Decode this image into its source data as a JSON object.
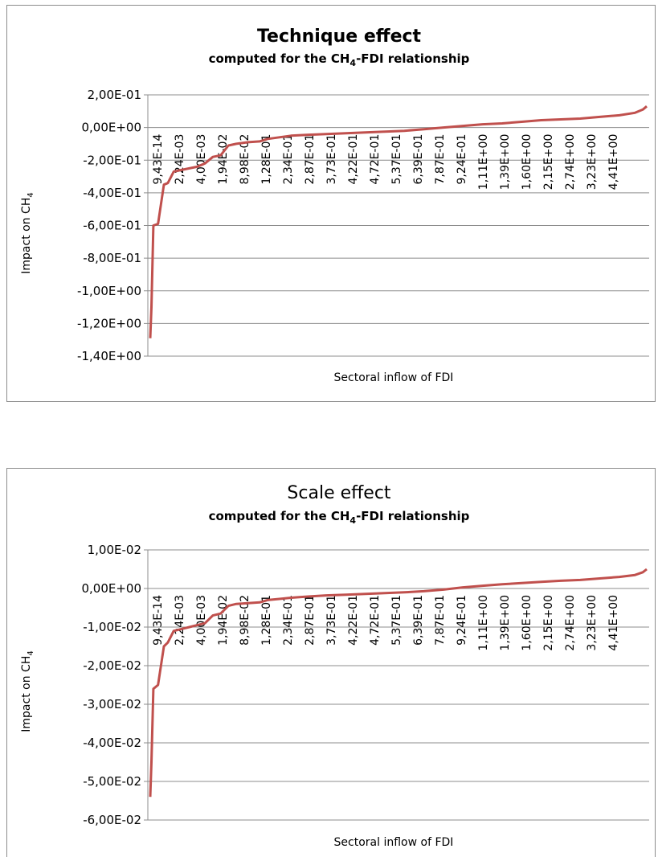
{
  "chart_data": [
    {
      "type": "line",
      "title": "Technique effect",
      "subtitle": "computed for the CH4-FDI relationship",
      "xlabel": "Sectoral inflow of FDI",
      "ylabel": "Impact on CH4",
      "ylim": [
        -1.4,
        0.2
      ],
      "yticks": [
        0.2,
        0.0,
        -0.2,
        -0.4,
        -0.6,
        -0.8,
        -1.0,
        -1.2,
        -1.4
      ],
      "ytick_labels": [
        "2,00E-01",
        "0,00E+00",
        "-2,00E-01",
        "-4,00E-01",
        "-6,00E-01",
        "-8,00E-01",
        "-1,00E+00",
        "-1,20E+00",
        "-1,40E+00"
      ],
      "xtick_labels": [
        "9,43E-14",
        "2,24E-03",
        "4,00E-03",
        "1,94E-02",
        "8,98E-02",
        "1,28E-01",
        "2,34E-01",
        "2,87E-01",
        "3,73E-01",
        "4,22E-01",
        "4,72E-01",
        "5,37E-01",
        "6,39E-01",
        "7,87E-01",
        "9,24E-01",
        "1,11E+00",
        "1,39E+00",
        "1,60E+00",
        "2,15E+00",
        "2,74E+00",
        "3,23E+00",
        "4,41E+00"
      ],
      "series": [
        {
          "color": "#c0504d",
          "x": [
            0,
            0.3,
            0.8,
            2,
            3.5,
            4.5,
            6,
            8,
            10,
            12,
            14,
            16,
            18,
            20,
            22,
            25,
            28,
            30,
            33,
            36,
            40,
            45,
            50,
            55,
            60,
            65,
            70,
            75,
            80,
            85,
            90,
            95,
            100,
            105,
            110,
            115,
            120,
            124,
            126,
            127
          ],
          "y": [
            -1.29,
            -1.1,
            -0.6,
            -0.59,
            -0.35,
            -0.34,
            -0.27,
            -0.26,
            -0.25,
            -0.24,
            -0.22,
            -0.18,
            -0.17,
            -0.11,
            -0.1,
            -0.09,
            -0.085,
            -0.07,
            -0.06,
            -0.05,
            -0.045,
            -0.04,
            -0.035,
            -0.03,
            -0.025,
            -0.02,
            -0.01,
            0.0,
            0.01,
            0.02,
            0.025,
            0.035,
            0.045,
            0.05,
            0.055,
            0.065,
            0.075,
            0.09,
            0.11,
            0.13
          ]
        }
      ]
    },
    {
      "type": "line",
      "title": "Scale effect",
      "subtitle": "computed for the CH4-FDI relationship",
      "xlabel": "Sectoral inflow of FDI",
      "ylabel": "Impact on CH4",
      "ylim": [
        -0.06,
        0.01
      ],
      "yticks": [
        0.01,
        0.0,
        -0.01,
        -0.02,
        -0.03,
        -0.04,
        -0.05,
        -0.06
      ],
      "ytick_labels": [
        "1,00E-02",
        "0,00E+00",
        "-1,00E-02",
        "-2,00E-02",
        "-3,00E-02",
        "-4,00E-02",
        "-5,00E-02",
        "-6,00E-02"
      ],
      "xtick_labels": [
        "9,43E-14",
        "2,24E-03",
        "4,00E-03",
        "1,94E-02",
        "8,98E-02",
        "1,28E-01",
        "2,34E-01",
        "2,87E-01",
        "3,73E-01",
        "4,22E-01",
        "4,72E-01",
        "5,37E-01",
        "6,39E-01",
        "7,87E-01",
        "9,24E-01",
        "1,11E+00",
        "1,39E+00",
        "1,60E+00",
        "2,15E+00",
        "2,74E+00",
        "3,23E+00",
        "4,41E+00"
      ],
      "series": [
        {
          "color": "#c0504d",
          "x": [
            0,
            0.3,
            0.8,
            2,
            3.5,
            4.5,
            6,
            8,
            10,
            12,
            14,
            16,
            18,
            20,
            22,
            25,
            28,
            30,
            33,
            36,
            40,
            45,
            50,
            55,
            60,
            65,
            70,
            75,
            80,
            85,
            90,
            95,
            100,
            105,
            110,
            115,
            120,
            124,
            126,
            127
          ],
          "y": [
            -0.054,
            -0.045,
            -0.026,
            -0.025,
            -0.015,
            -0.014,
            -0.011,
            -0.0105,
            -0.01,
            -0.0095,
            -0.009,
            -0.007,
            -0.0065,
            -0.0045,
            -0.004,
            -0.0038,
            -0.0036,
            -0.003,
            -0.0027,
            -0.0024,
            -0.0021,
            -0.0018,
            -0.0016,
            -0.0014,
            -0.0012,
            -0.001,
            -0.0007,
            -0.0003,
            0.0003,
            0.0007,
            0.0011,
            0.0014,
            0.0017,
            0.002,
            0.0022,
            0.0026,
            0.003,
            0.0035,
            0.0042,
            0.005
          ]
        }
      ]
    }
  ],
  "text": {
    "chart1_title_main": "Technique effect",
    "chart1_subtitle_prefix": "computed for the CH",
    "chart1_subtitle_sub": "4",
    "chart1_subtitle_suffix": "-FDI relationship",
    "chart1_xlabel": "Sectoral inflow of FDI",
    "chart1_ylabel_prefix": "Impact on CH",
    "chart1_ylabel_sub": "4",
    "chart2_title_main": "Scale effect",
    "chart2_subtitle_prefix": "computed for the CH",
    "chart2_subtitle_sub": "4",
    "chart2_subtitle_suffix": "-FDI relationship",
    "chart2_xlabel": "Sectoral inflow of FDI",
    "chart2_ylabel_prefix": "Impact on CH",
    "chart2_ylabel_sub": "4"
  }
}
